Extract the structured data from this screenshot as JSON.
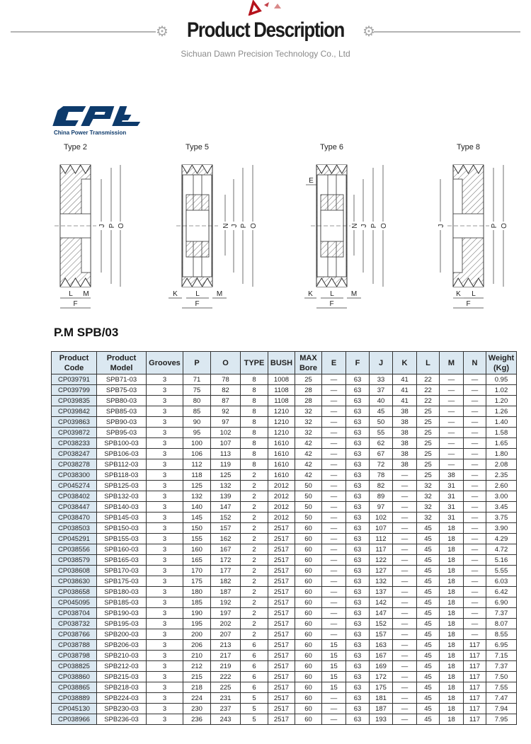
{
  "header": {
    "title": "Product Description",
    "subtitle": "Sichuan Dawn Precision Technology Co., Ltd",
    "accent_color": "#b5121b",
    "icons": [
      "triangle-decoration-icon",
      "gear-icon"
    ]
  },
  "logo": {
    "text": "CPT",
    "tagline": "China Power Transmission",
    "color": "#0d3a6b"
  },
  "diagrams": [
    {
      "label": "Type 2",
      "dims": [
        "J",
        "P",
        "O",
        "L",
        "M",
        "F"
      ]
    },
    {
      "label": "Type 5",
      "dims": [
        "N",
        "J",
        "P",
        "O",
        "K",
        "L",
        "M",
        "F"
      ]
    },
    {
      "label": "Type 6",
      "dims": [
        "E",
        "N",
        "J",
        "P",
        "O",
        "K",
        "L",
        "M",
        "F"
      ]
    },
    {
      "label": "Type 8",
      "dims": [
        "J",
        "P",
        "O",
        "K",
        "L",
        "F"
      ]
    }
  ],
  "model_title": "P.M SPB/03",
  "table": {
    "columns": [
      "Product Code",
      "Product Model",
      "Grooves",
      "P",
      "O",
      "TYPE",
      "BUSH",
      "MAX Bore",
      "E",
      "F",
      "J",
      "K",
      "L",
      "M",
      "N",
      "Weight (Kg)"
    ],
    "rows": [
      [
        "CP039791",
        "SPB71-03",
        "3",
        "71",
        "78",
        "8",
        "1008",
        "25",
        "—",
        "63",
        "33",
        "41",
        "22",
        "—",
        "—",
        "0.95"
      ],
      [
        "CP039799",
        "SPB75-03",
        "3",
        "75",
        "82",
        "8",
        "1108",
        "28",
        "—",
        "63",
        "37",
        "41",
        "22",
        "—",
        "—",
        "1.02"
      ],
      [
        "CP039835",
        "SPB80-03",
        "3",
        "80",
        "87",
        "8",
        "1108",
        "28",
        "—",
        "63",
        "40",
        "41",
        "22",
        "—",
        "—",
        "1.20"
      ],
      [
        "CP039842",
        "SPB85-03",
        "3",
        "85",
        "92",
        "8",
        "1210",
        "32",
        "—",
        "63",
        "45",
        "38",
        "25",
        "—",
        "—",
        "1.26"
      ],
      [
        "CP039863",
        "SPB90-03",
        "3",
        "90",
        "97",
        "8",
        "1210",
        "32",
        "—",
        "63",
        "50",
        "38",
        "25",
        "—",
        "—",
        "1.40"
      ],
      [
        "CP039872",
        "SPB95-03",
        "3",
        "95",
        "102",
        "8",
        "1210",
        "32",
        "—",
        "63",
        "55",
        "38",
        "25",
        "—",
        "—",
        "1.58"
      ],
      [
        "CP038233",
        "SPB100-03",
        "3",
        "100",
        "107",
        "8",
        "1610",
        "42",
        "—",
        "63",
        "62",
        "38",
        "25",
        "—",
        "—",
        "1.65"
      ],
      [
        "CP038247",
        "SPB106-03",
        "3",
        "106",
        "113",
        "8",
        "1610",
        "42",
        "—",
        "63",
        "67",
        "38",
        "25",
        "—",
        "—",
        "1.80"
      ],
      [
        "CP038278",
        "SPB112-03",
        "3",
        "112",
        "119",
        "8",
        "1610",
        "42",
        "—",
        "63",
        "72",
        "38",
        "25",
        "—",
        "—",
        "2.08"
      ],
      [
        "CP038300",
        "SPB118-03",
        "3",
        "118",
        "125",
        "2",
        "1610",
        "42",
        "—",
        "63",
        "78",
        "—",
        "25",
        "38",
        "—",
        "2.35"
      ],
      [
        "CP045274",
        "SPB125-03",
        "3",
        "125",
        "132",
        "2",
        "2012",
        "50",
        "—",
        "63",
        "82",
        "—",
        "32",
        "31",
        "—",
        "2.60"
      ],
      [
        "CP038402",
        "SPB132-03",
        "3",
        "132",
        "139",
        "2",
        "2012",
        "50",
        "—",
        "63",
        "89",
        "—",
        "32",
        "31",
        "—",
        "3.00"
      ],
      [
        "CP038447",
        "SPB140-03",
        "3",
        "140",
        "147",
        "2",
        "2012",
        "50",
        "—",
        "63",
        "97",
        "—",
        "32",
        "31",
        "—",
        "3.45"
      ],
      [
        "CP038470",
        "SPB145-03",
        "3",
        "145",
        "152",
        "2",
        "2012",
        "50",
        "—",
        "63",
        "102",
        "—",
        "32",
        "31",
        "—",
        "3.75"
      ],
      [
        "CP038503",
        "SPB150-03",
        "3",
        "150",
        "157",
        "2",
        "2517",
        "60",
        "—",
        "63",
        "107",
        "—",
        "45",
        "18",
        "—",
        "3.90"
      ],
      [
        "CP045291",
        "SPB155-03",
        "3",
        "155",
        "162",
        "2",
        "2517",
        "60",
        "—",
        "63",
        "112",
        "—",
        "45",
        "18",
        "—",
        "4.29"
      ],
      [
        "CP038556",
        "SPB160-03",
        "3",
        "160",
        "167",
        "2",
        "2517",
        "60",
        "—",
        "63",
        "117",
        "—",
        "45",
        "18",
        "—",
        "4.72"
      ],
      [
        "CP038579",
        "SPB165-03",
        "3",
        "165",
        "172",
        "2",
        "2517",
        "60",
        "—",
        "63",
        "122",
        "—",
        "45",
        "18",
        "—",
        "5.16"
      ],
      [
        "CP038608",
        "SPB170-03",
        "3",
        "170",
        "177",
        "2",
        "2517",
        "60",
        "—",
        "63",
        "127",
        "—",
        "45",
        "18",
        "—",
        "5.55"
      ],
      [
        "CP038630",
        "SPB175-03",
        "3",
        "175",
        "182",
        "2",
        "2517",
        "60",
        "—",
        "63",
        "132",
        "—",
        "45",
        "18",
        "—",
        "6.03"
      ],
      [
        "CP038658",
        "SPB180-03",
        "3",
        "180",
        "187",
        "2",
        "2517",
        "60",
        "—",
        "63",
        "137",
        "—",
        "45",
        "18",
        "—",
        "6.42"
      ],
      [
        "CP045095",
        "SPB185-03",
        "3",
        "185",
        "192",
        "2",
        "2517",
        "60",
        "—",
        "63",
        "142",
        "—",
        "45",
        "18",
        "—",
        "6.90"
      ],
      [
        "CP038704",
        "SPB190-03",
        "3",
        "190",
        "197",
        "2",
        "2517",
        "60",
        "—",
        "63",
        "147",
        "—",
        "45",
        "18",
        "—",
        "7.37"
      ],
      [
        "CP038732",
        "SPB195-03",
        "3",
        "195",
        "202",
        "2",
        "2517",
        "60",
        "—",
        "63",
        "152",
        "—",
        "45",
        "18",
        "—",
        "8.07"
      ],
      [
        "CP038766",
        "SPB200-03",
        "3",
        "200",
        "207",
        "2",
        "2517",
        "60",
        "—",
        "63",
        "157",
        "—",
        "45",
        "18",
        "—",
        "8.55"
      ],
      [
        "CP038788",
        "SPB206-03",
        "3",
        "206",
        "213",
        "6",
        "2517",
        "60",
        "15",
        "63",
        "163",
        "—",
        "45",
        "18",
        "117",
        "6.95"
      ],
      [
        "CP038798",
        "SPB210-03",
        "3",
        "210",
        "217",
        "6",
        "2517",
        "60",
        "15",
        "63",
        "167",
        "—",
        "45",
        "18",
        "117",
        "7.15"
      ],
      [
        "CP038825",
        "SPB212-03",
        "3",
        "212",
        "219",
        "6",
        "2517",
        "60",
        "15",
        "63",
        "169",
        "—",
        "45",
        "18",
        "117",
        "7.37"
      ],
      [
        "CP038860",
        "SPB215-03",
        "3",
        "215",
        "222",
        "6",
        "2517",
        "60",
        "15",
        "63",
        "172",
        "—",
        "45",
        "18",
        "117",
        "7.50"
      ],
      [
        "CP038865",
        "SPB218-03",
        "3",
        "218",
        "225",
        "6",
        "2517",
        "60",
        "15",
        "63",
        "175",
        "—",
        "45",
        "18",
        "117",
        "7.55"
      ],
      [
        "CP038889",
        "SPB224-03",
        "3",
        "224",
        "231",
        "5",
        "2517",
        "60",
        "—",
        "63",
        "181",
        "—",
        "45",
        "18",
        "117",
        "7.47"
      ],
      [
        "CP045130",
        "SPB230-03",
        "3",
        "230",
        "237",
        "5",
        "2517",
        "60",
        "—",
        "63",
        "187",
        "—",
        "45",
        "18",
        "117",
        "7.94"
      ],
      [
        "CP038966",
        "SPB236-03",
        "3",
        "236",
        "243",
        "5",
        "2517",
        "60",
        "—",
        "63",
        "193",
        "—",
        "45",
        "18",
        "117",
        "7.95"
      ]
    ]
  }
}
